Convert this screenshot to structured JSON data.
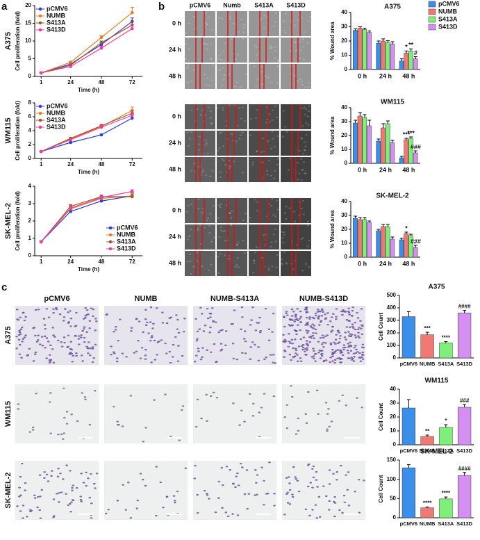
{
  "panel_labels": [
    "a",
    "b",
    "c"
  ],
  "wound_healing": {
    "columns": [
      "pCMV6",
      "Numb",
      "S413A",
      "S413D"
    ],
    "rows": [
      "0 h",
      "24 h",
      "48 h"
    ]
  },
  "transwell": {
    "columns": [
      "pCMV6",
      "NUMB",
      "NUMB-S413A",
      "NUMB-S413D"
    ],
    "rows": [
      "A375",
      "WM115",
      "SK-MEL-2"
    ]
  },
  "chart_data": [
    {
      "type": "line",
      "title": "A375",
      "ylabel": "Cell proliferation (fold)",
      "xlabel": "Time (h)",
      "x": [
        1,
        24,
        48,
        72
      ],
      "xlim": [
        -4,
        80
      ],
      "xticks": [
        1,
        24,
        48,
        72
      ],
      "ylim": [
        0,
        20
      ],
      "yticks": [
        0,
        5,
        10,
        15,
        20
      ],
      "legend": "upper left",
      "series": [
        {
          "name": "pCMV6",
          "color": "#2b3bd6",
          "values": [
            1,
            3.5,
            9,
            15.5
          ],
          "errors": [
            0.1,
            0.3,
            0.5,
            1.0
          ]
        },
        {
          "name": "NUMB",
          "color": "#e0802b",
          "values": [
            1,
            4,
            11,
            18
          ],
          "errors": [
            0.1,
            0.3,
            0.5,
            1.5
          ]
        },
        {
          "name": "S413A",
          "color": "#9a5b2a",
          "values": [
            1,
            3.2,
            9.5,
            14.5
          ],
          "errors": [
            0.1,
            0.3,
            0.5,
            1.0
          ]
        },
        {
          "name": "S413D",
          "color": "#f03ca0",
          "values": [
            1,
            2.8,
            8,
            13.5
          ],
          "errors": [
            0.1,
            0.3,
            0.5,
            1.0
          ]
        }
      ]
    },
    {
      "type": "line",
      "title": "WM115",
      "ylabel": "Cell proliferation (fold)",
      "xlabel": "Time (h)",
      "x": [
        1,
        24,
        48,
        72
      ],
      "xlim": [
        -4,
        80
      ],
      "xticks": [
        1,
        24,
        48,
        72
      ],
      "ylim": [
        0,
        8
      ],
      "yticks": [
        0,
        2,
        4,
        6,
        8
      ],
      "legend": "upper left",
      "series": [
        {
          "name": "pCMV6",
          "color": "#2b3bd6",
          "values": [
            1,
            2.3,
            3.4,
            5.8
          ],
          "errors": [
            0.05,
            0.1,
            0.1,
            0.6
          ]
        },
        {
          "name": "NUMB",
          "color": "#e0802b",
          "values": [
            1,
            2.8,
            4.6,
            6.9
          ],
          "errors": [
            0.05,
            0.1,
            0.2,
            0.5
          ]
        },
        {
          "name": "S413A",
          "color": "#9a5b2a",
          "values": [
            1,
            2.9,
            4.7,
            6.5
          ],
          "errors": [
            0.05,
            0.1,
            0.2,
            0.4
          ]
        },
        {
          "name": "S413D",
          "color": "#f03ca0",
          "values": [
            1,
            2.7,
            4.5,
            6.2
          ],
          "errors": [
            0.05,
            0.1,
            0.2,
            0.4
          ]
        }
      ]
    },
    {
      "type": "line",
      "title": "SK-MEL-2",
      "ylabel": "Cell proliferation (fold)",
      "xlabel": "Time (h)",
      "x": [
        1,
        24,
        48,
        72
      ],
      "xlim": [
        -4,
        80
      ],
      "xticks": [
        1,
        24,
        48,
        72
      ],
      "ylim": [
        0,
        4
      ],
      "yticks": [
        0,
        1,
        2,
        3,
        4
      ],
      "legend": "lower right",
      "series": [
        {
          "name": "pCMV6",
          "color": "#2b3bd6",
          "values": [
            0.8,
            2.55,
            3.15,
            3.45
          ],
          "errors": [
            0.05,
            0.1,
            0.1,
            0.2
          ]
        },
        {
          "name": "NUMB",
          "color": "#e0802b",
          "values": [
            0.8,
            2.7,
            3.3,
            3.45
          ],
          "errors": [
            0.05,
            0.1,
            0.1,
            0.15
          ]
        },
        {
          "name": "S413A",
          "color": "#9a5b2a",
          "values": [
            0.8,
            2.85,
            3.4,
            3.4
          ],
          "errors": [
            0.05,
            0.1,
            0.1,
            0.15
          ]
        },
        {
          "name": "S413D",
          "color": "#f03ca0",
          "values": [
            0.8,
            2.75,
            3.35,
            3.7
          ],
          "errors": [
            0.05,
            0.1,
            0.1,
            0.1
          ]
        }
      ]
    },
    {
      "type": "grouped_bar",
      "title": "A375",
      "ylabel": "% Wound area",
      "categories": [
        "0 h",
        "24 h",
        "48 h"
      ],
      "ylim": [
        0,
        40
      ],
      "yticks": [
        0,
        10,
        20,
        30,
        40
      ],
      "legend": "right",
      "series": [
        {
          "name": "pCMV6",
          "color": "#3b8fe8",
          "values": [
            27.5,
            18.5,
            6
          ],
          "errors": [
            1,
            1.5,
            1.5
          ],
          "significance": [
            null,
            null,
            null
          ]
        },
        {
          "name": "NUMB",
          "color": "#f07a73",
          "values": [
            29,
            20,
            11.5
          ],
          "errors": [
            1,
            1.5,
            1.5
          ],
          "significance": [
            null,
            null,
            "*"
          ]
        },
        {
          "name": "S413A",
          "color": "#7ef07a",
          "values": [
            28,
            19,
            13
          ],
          "errors": [
            1,
            1.2,
            1.5
          ],
          "significance": [
            null,
            null,
            "**"
          ]
        },
        {
          "name": "S413D",
          "color": "#d48ff0",
          "values": [
            26,
            18,
            7.5
          ],
          "errors": [
            1,
            1.5,
            1.5
          ],
          "significance": [
            null,
            null,
            "#"
          ]
        }
      ]
    },
    {
      "type": "grouped_bar",
      "title": "WM115",
      "ylabel": "% Wound area",
      "categories": [
        "0 h",
        "24 h",
        "48 h"
      ],
      "ylim": [
        0,
        40
      ],
      "yticks": [
        0,
        10,
        20,
        30,
        40
      ],
      "series": [
        {
          "name": "pCMV6",
          "color": "#3b8fe8",
          "values": [
            29,
            16,
            4
          ],
          "errors": [
            2,
            1.5,
            1
          ]
        },
        {
          "name": "NUMB",
          "color": "#f07a73",
          "values": [
            34,
            25.5,
            17
          ],
          "errors": [
            2.5,
            3,
            1
          ],
          "significance": [
            null,
            null,
            "***"
          ]
        },
        {
          "name": "S413A",
          "color": "#7ef07a",
          "values": [
            33,
            28.5,
            18
          ],
          "errors": [
            2,
            2,
            1
          ],
          "significance": [
            null,
            null,
            "***"
          ]
        },
        {
          "name": "S413D",
          "color": "#d48ff0",
          "values": [
            27,
            15,
            7.5
          ],
          "errors": [
            4,
            1.5,
            1.5
          ],
          "significance": [
            null,
            null,
            "###"
          ]
        }
      ]
    },
    {
      "type": "grouped_bar",
      "title": "SK-MEL-2",
      "ylabel": "% Wound area",
      "categories": [
        "0 h",
        "24 h",
        "48 h"
      ],
      "ylim": [
        0,
        40
      ],
      "yticks": [
        0,
        10,
        20,
        30,
        40
      ],
      "series": [
        {
          "name": "pCMV6",
          "color": "#3b8fe8",
          "values": [
            28,
            19,
            12.5
          ],
          "errors": [
            1.5,
            1,
            1
          ]
        },
        {
          "name": "NUMB",
          "color": "#f07a73",
          "values": [
            27,
            22,
            17
          ],
          "errors": [
            1.5,
            1.5,
            1
          ],
          "significance": [
            null,
            null,
            "*"
          ]
        },
        {
          "name": "S413A",
          "color": "#7ef07a",
          "values": [
            27,
            22,
            15.5
          ],
          "errors": [
            1.5,
            1.5,
            1
          ]
        },
        {
          "name": "S413D",
          "color": "#d48ff0",
          "values": [
            25,
            13,
            7
          ],
          "errors": [
            1,
            1.5,
            1.5
          ],
          "significance": [
            null,
            null,
            "###"
          ]
        }
      ]
    },
    {
      "type": "bar",
      "title": "A375",
      "ylabel": "Cell Count",
      "categories": [
        "pCMV6",
        "NUMB",
        "S413A",
        "S413D"
      ],
      "colors": [
        "#3b8fe8",
        "#f07a73",
        "#7ef07a",
        "#d48ff0"
      ],
      "ylim": [
        0,
        500
      ],
      "yticks": [
        0,
        100,
        200,
        300,
        400,
        500
      ],
      "values": [
        330,
        185,
        120,
        360
      ],
      "errors": [
        40,
        20,
        10,
        20
      ],
      "significance": [
        null,
        "***",
        "****",
        "####"
      ]
    },
    {
      "type": "bar",
      "title": "WM115",
      "ylabel": "Cell Count",
      "categories": [
        "pCMV6",
        "NUMB",
        "S413A",
        "S413D"
      ],
      "colors": [
        "#3b8fe8",
        "#f07a73",
        "#7ef07a",
        "#d48ff0"
      ],
      "ylim": [
        0,
        40
      ],
      "yticks": [
        0,
        10,
        20,
        30,
        40
      ],
      "values": [
        26.5,
        6,
        12.5,
        27
      ],
      "errors": [
        6,
        1,
        2,
        2
      ],
      "significance": [
        null,
        "**",
        "*",
        "###"
      ]
    },
    {
      "type": "bar",
      "title": "SK-MEL-2",
      "ylabel": "Cell Count",
      "categories": [
        "pCMV6",
        "NUMB",
        "S413A",
        "S413D"
      ],
      "colors": [
        "#3b8fe8",
        "#f07a73",
        "#7ef07a",
        "#d48ff0"
      ],
      "ylim": [
        0,
        150
      ],
      "yticks": [
        0,
        50,
        100,
        150
      ],
      "values": [
        130,
        26,
        49,
        110
      ],
      "errors": [
        8,
        2,
        5,
        8
      ],
      "significance": [
        null,
        "****",
        "****",
        "####"
      ]
    }
  ]
}
